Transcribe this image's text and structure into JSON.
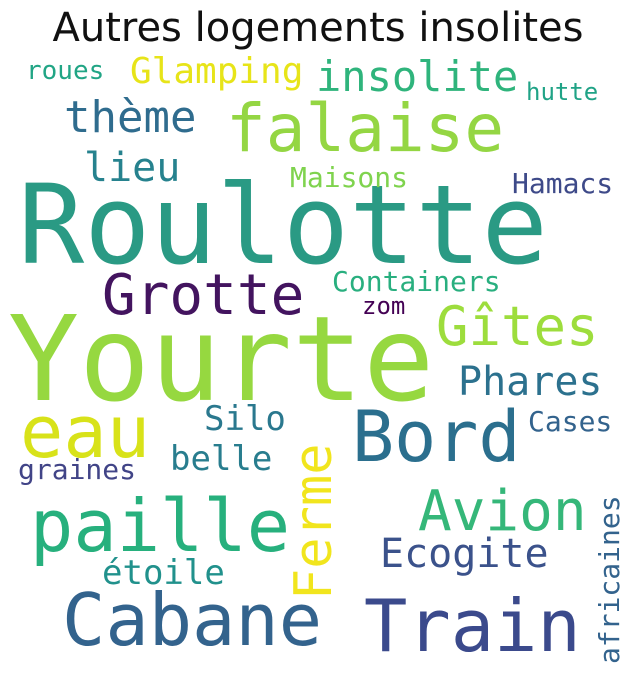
{
  "title": "Autres logements insolites",
  "words": [
    {
      "text": "Roulotte",
      "color": "#2a9a84"
    },
    {
      "text": "Yourte",
      "color": "#96d840"
    },
    {
      "text": "falaise",
      "color": "#94d643"
    },
    {
      "text": "Cabane",
      "color": "#33638d"
    },
    {
      "text": "Train",
      "color": "#3b4a8c"
    },
    {
      "text": "Bord",
      "color": "#2b6f8e"
    },
    {
      "text": "paille",
      "color": "#27b07d"
    },
    {
      "text": "Grotte",
      "color": "#43145f"
    },
    {
      "text": "eau",
      "color": "#d8e219"
    },
    {
      "text": "Gîtes",
      "color": "#9ddd3d"
    },
    {
      "text": "Ferme",
      "color": "#f1e51d"
    },
    {
      "text": "Avion",
      "color": "#35b779"
    },
    {
      "text": "insolite",
      "color": "#2fb47c"
    },
    {
      "text": "Phares",
      "color": "#2c718e"
    },
    {
      "text": "Ecogite",
      "color": "#3b528b"
    },
    {
      "text": "thème",
      "color": "#2f6c8e"
    },
    {
      "text": "Glamping",
      "color": "#e7e419"
    },
    {
      "text": "lieu",
      "color": "#26828e"
    },
    {
      "text": "Silo",
      "color": "#2a788e"
    },
    {
      "text": "belle",
      "color": "#287d8e"
    },
    {
      "text": "étoile",
      "color": "#21918c"
    },
    {
      "text": "Containers",
      "color": "#29af7f"
    },
    {
      "text": "Hamacs",
      "color": "#3e4a89"
    },
    {
      "text": "Maisons",
      "color": "#7fd34e"
    },
    {
      "text": "Cases",
      "color": "#33638d"
    },
    {
      "text": "graines",
      "color": "#414487"
    },
    {
      "text": "africaines",
      "color": "#33638d"
    },
    {
      "text": "roues",
      "color": "#21a585"
    },
    {
      "text": "hutte",
      "color": "#20a386"
    },
    {
      "text": "zom",
      "color": "#440154"
    }
  ]
}
